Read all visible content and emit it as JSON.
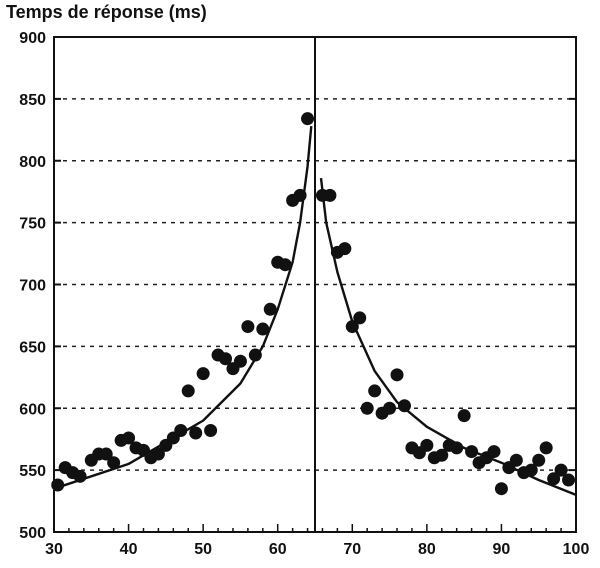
{
  "chart_data": {
    "type": "scatter",
    "title": "",
    "ylabel": "Temps de réponse (ms)",
    "xlabel": "",
    "xlim": [
      30,
      100
    ],
    "ylim": [
      500,
      900
    ],
    "x_ticks": [
      30,
      40,
      50,
      60,
      70,
      80,
      90,
      100
    ],
    "y_ticks": [
      500,
      550,
      600,
      650,
      700,
      750,
      800,
      850,
      900
    ],
    "grid": "horizontal-dashed",
    "vertical_reference_line_x": 65,
    "series": [
      {
        "points": [
          [
            30.5,
            538
          ],
          [
            31.5,
            552
          ],
          [
            32.5,
            548
          ],
          [
            33.5,
            545
          ],
          [
            35,
            558
          ],
          [
            36,
            563
          ],
          [
            37,
            563
          ],
          [
            38,
            556
          ],
          [
            39,
            574
          ],
          [
            40,
            576
          ],
          [
            41,
            568
          ],
          [
            42,
            566
          ],
          [
            43,
            560
          ],
          [
            44,
            563
          ],
          [
            45,
            570
          ],
          [
            46,
            576
          ],
          [
            47,
            582
          ],
          [
            48,
            614
          ],
          [
            49,
            580
          ],
          [
            50,
            628
          ],
          [
            51,
            582
          ],
          [
            52,
            643
          ],
          [
            53,
            640
          ],
          [
            54,
            632
          ],
          [
            55,
            638
          ],
          [
            56,
            666
          ],
          [
            57,
            643
          ],
          [
            58,
            664
          ],
          [
            59,
            680
          ],
          [
            60,
            718
          ],
          [
            61,
            716
          ],
          [
            62,
            768
          ],
          [
            63,
            772
          ],
          [
            64,
            834
          ],
          [
            66,
            772
          ],
          [
            67,
            772
          ],
          [
            68,
            726
          ],
          [
            69,
            729
          ],
          [
            70,
            666
          ],
          [
            71,
            673
          ],
          [
            72,
            600
          ],
          [
            73,
            614
          ],
          [
            74,
            596
          ],
          [
            75,
            600
          ],
          [
            76,
            627
          ],
          [
            77,
            602
          ],
          [
            78,
            568
          ],
          [
            79,
            564
          ],
          [
            80,
            570
          ],
          [
            81,
            560
          ],
          [
            82,
            562
          ],
          [
            83,
            570
          ],
          [
            84,
            568
          ],
          [
            85,
            594
          ],
          [
            86,
            565
          ],
          [
            87,
            556
          ],
          [
            88,
            560
          ],
          [
            89,
            565
          ],
          [
            90,
            535
          ],
          [
            91,
            552
          ],
          [
            92,
            558
          ],
          [
            93,
            548
          ],
          [
            94,
            550
          ],
          [
            95,
            558
          ],
          [
            96,
            568
          ],
          [
            97,
            543
          ],
          [
            98,
            550
          ],
          [
            99,
            542
          ]
        ]
      },
      {
        "fit_left": [
          [
            30,
            535
          ],
          [
            40,
            555
          ],
          [
            50,
            590
          ],
          [
            55,
            620
          ],
          [
            58,
            650
          ],
          [
            60,
            680
          ],
          [
            62,
            718
          ],
          [
            63,
            750
          ],
          [
            64,
            795
          ],
          [
            64.5,
            828
          ]
        ],
        "fit_right": [
          [
            65.8,
            786
          ],
          [
            66.5,
            750
          ],
          [
            68,
            710
          ],
          [
            70,
            670
          ],
          [
            73,
            630
          ],
          [
            76,
            605
          ],
          [
            80,
            585
          ],
          [
            85,
            568
          ],
          [
            90,
            556
          ],
          [
            95,
            542
          ],
          [
            100,
            530
          ]
        ]
      }
    ]
  }
}
